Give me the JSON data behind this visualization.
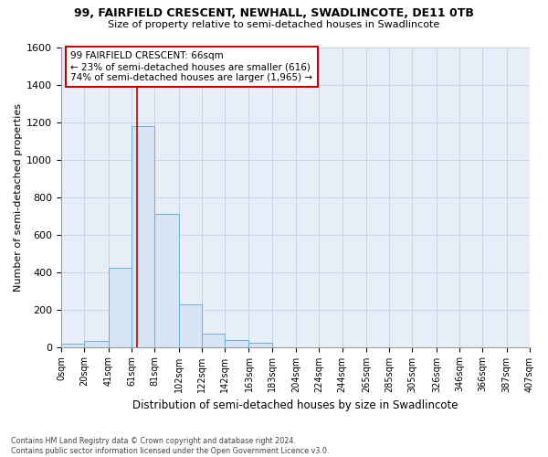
{
  "title1": "99, FAIRFIELD CRESCENT, NEWHALL, SWADLINCOTE, DE11 0TB",
  "title2": "Size of property relative to semi-detached houses in Swadlincote",
  "xlabel": "Distribution of semi-detached houses by size in Swadlincote",
  "ylabel": "Number of semi-detached properties",
  "footnote": "Contains HM Land Registry data © Crown copyright and database right 2024.\nContains public sector information licensed under the Open Government Licence v3.0.",
  "annotation_title": "99 FAIRFIELD CRESCENT: 66sqm",
  "annotation_line2": "← 23% of semi-detached houses are smaller (616)",
  "annotation_line3": "74% of semi-detached houses are larger (1,965) →",
  "property_sqm": 66,
  "bar_edges": [
    0,
    20,
    41,
    61,
    81,
    102,
    122,
    142,
    163,
    183,
    204,
    224,
    244,
    265,
    285,
    305,
    326,
    346,
    366,
    387,
    407
  ],
  "bar_heights": [
    15,
    30,
    420,
    1180,
    710,
    225,
    70,
    35,
    20,
    0,
    0,
    0,
    0,
    0,
    0,
    0,
    0,
    0,
    0,
    0
  ],
  "bar_color": "#d6e4f5",
  "bar_edge_color": "#6aafd6",
  "vline_color": "#cc0000",
  "vline_x": 66,
  "ylim": [
    0,
    1600
  ],
  "yticks": [
    0,
    200,
    400,
    600,
    800,
    1000,
    1200,
    1400,
    1600
  ],
  "xtick_labels": [
    "0sqm",
    "20sqm",
    "41sqm",
    "61sqm",
    "81sqm",
    "102sqm",
    "122sqm",
    "142sqm",
    "163sqm",
    "183sqm",
    "204sqm",
    "224sqm",
    "244sqm",
    "265sqm",
    "285sqm",
    "305sqm",
    "326sqm",
    "346sqm",
    "366sqm",
    "387sqm",
    "407sqm"
  ],
  "annotation_box_color": "#ffffff",
  "annotation_box_edge": "#cc0000",
  "grid_color": "#c8d4e8",
  "bg_color": "#ffffff",
  "plot_bg_color": "#e8eef8"
}
